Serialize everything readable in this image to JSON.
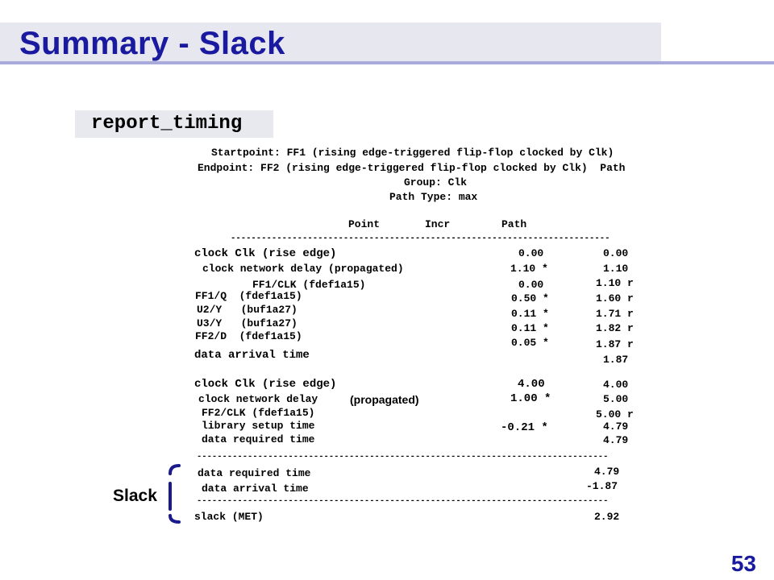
{
  "slide": {
    "title": "Summary - Slack",
    "command": "report_timing",
    "page_number": "53",
    "slack_label": "Slack"
  },
  "report": {
    "header": [
      "Startpoint: FF1 (rising edge-triggered flip-flop clocked by Clk)",
      "Endpoint: FF2 (rising edge-triggered flip-flop clocked by Clk)  Path",
      "Group: Clk",
      "Path Type: max"
    ],
    "columns": {
      "point": "Point",
      "incr": "Incr",
      "path": "Path"
    },
    "arrival": {
      "clock_rise": {
        "label": "clock Clk (rise edge)",
        "incr": "0.00",
        "path": "0.00"
      },
      "net_delay": {
        "label": "clock network delay (propagated)",
        "incr": "1.10 *",
        "path": "1.10"
      },
      "ff1_clk": {
        "label": "FF1/CLK (fdef1a15)",
        "incr": "0.00",
        "path": "1.10 r"
      },
      "ff1_q": {
        "label": "FF1/Q  (fdef1a15)",
        "incr": "0.50 *",
        "path": "1.60 r"
      },
      "u2_y": {
        "label": "U2/Y   (buf1a27)",
        "incr": "0.11 *",
        "path": "1.71 r"
      },
      "u3_y": {
        "label": "U3/Y   (buf1a27)",
        "incr": "0.11 *",
        "path": "1.82 r"
      },
      "ff2_d": {
        "label": "FF2/D  (fdef1a15)",
        "incr": "0.05 *",
        "path": "1.87 r"
      },
      "arrival_time": {
        "label": "data arrival time",
        "path": "1.87"
      }
    },
    "required": {
      "clock_rise": {
        "label": "clock Clk (rise edge)",
        "incr": "4.00",
        "path": "4.00"
      },
      "net_delay": {
        "label": "clock network delay",
        "label2": "(propagated)",
        "incr": "1.00 *",
        "path": "5.00"
      },
      "ff2_clk": {
        "label": "FF2/CLK (fdef1a15)",
        "path": "5.00 r"
      },
      "setup": {
        "label": "library setup time",
        "incr": "-0.21 *",
        "path": "4.79"
      },
      "required_time": {
        "label": "data required time",
        "path": "4.79"
      }
    },
    "summary": {
      "required": {
        "label": "data required time",
        "value": "4.79"
      },
      "arrival": {
        "label": "data arrival time",
        "value": "-1.87"
      },
      "slack": {
        "label": "slack (MET)",
        "value": "2.92"
      }
    },
    "dashes_1": "--------------------------------------------------------------------------",
    "dashes_2": "---------------------------------------------------------------------------------",
    "dashes_3": "---------------------------------------------------------------------------------"
  }
}
